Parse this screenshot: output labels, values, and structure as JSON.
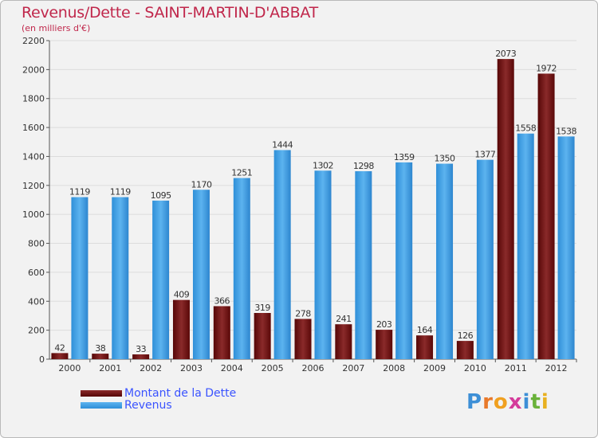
{
  "title": "Revenus/Dette - SAINT-MARTIN-D'ABBAT",
  "subtitle": "(en milliers d'€)",
  "logo_text": "Proxiti",
  "colors": {
    "dette": "#6b0b0b",
    "revenus": "#3d9ee3",
    "title": "#c0274b",
    "legend_text": "#3a53ff"
  },
  "chart_data": {
    "type": "bar",
    "categories": [
      "2000",
      "2001",
      "2002",
      "2003",
      "2004",
      "2005",
      "2006",
      "2007",
      "2008",
      "2009",
      "2010",
      "2011",
      "2012"
    ],
    "series": [
      {
        "name": "Montant de la Dette",
        "values": [
          42,
          38,
          33,
          409,
          366,
          319,
          278,
          241,
          203,
          164,
          126,
          2073,
          1972
        ]
      },
      {
        "name": "Revenus",
        "values": [
          1119,
          1119,
          1095,
          1170,
          1251,
          1444,
          1302,
          1298,
          1359,
          1350,
          1377,
          1558,
          1538
        ]
      }
    ],
    "ylim": [
      0,
      2200
    ],
    "yticks": [
      0,
      200,
      400,
      600,
      800,
      1000,
      1200,
      1400,
      1600,
      1800,
      2000,
      2200
    ],
    "grid": true,
    "legend_position": "bottom-left"
  }
}
